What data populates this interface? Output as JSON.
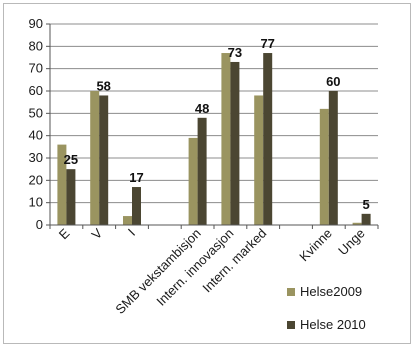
{
  "chart_data": {
    "type": "bar",
    "title": "",
    "xlabel": "",
    "ylabel": "",
    "ylim": [
      0,
      90
    ],
    "yticks": [
      0,
      10,
      20,
      30,
      40,
      50,
      60,
      70,
      80,
      90
    ],
    "grid": true,
    "legend_position": "bottom-right",
    "categories": [
      "E",
      "V",
      "I",
      "",
      "SMB vekstambisjon",
      "Intern. innovasjon",
      "Intern. marked",
      "",
      "Kvinne",
      "Unge"
    ],
    "series": [
      {
        "name": "Helse2009",
        "color": "#9a9460",
        "values": [
          36,
          60,
          4,
          null,
          39,
          77,
          58,
          null,
          52,
          1
        ]
      },
      {
        "name": "Helse 2010",
        "color": "#4b4632",
        "values": [
          25,
          58,
          17,
          null,
          48,
          73,
          77,
          null,
          60,
          5
        ]
      }
    ],
    "data_labels": [
      "25",
      "58",
      "17",
      "",
      "48",
      "73",
      "77",
      "",
      "60",
      "5"
    ]
  }
}
